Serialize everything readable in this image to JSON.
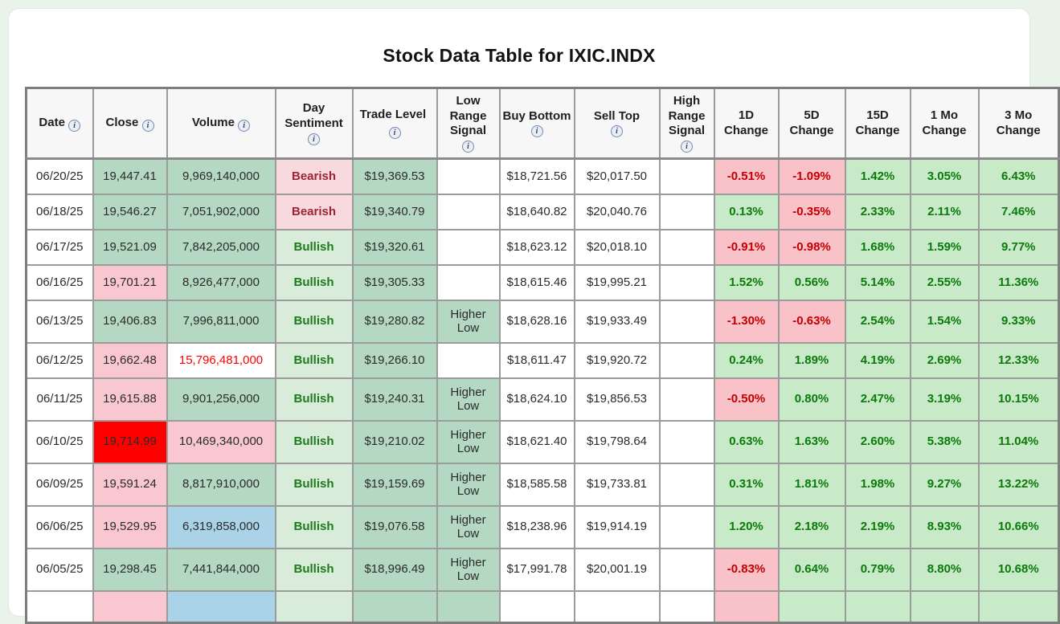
{
  "page": {
    "title": "Stock Data Table for IXIC.INDX"
  },
  "colors": {
    "page_bg": "#e9f3ea",
    "green_cell": "#b4d8c1",
    "light_green_cell": "#d9ecd9",
    "pink_cell": "#f9c7d0",
    "light_pink_cell": "#f8dade",
    "red_cell": "#fe0000",
    "blue_cell": "#abd3e8",
    "pct_green_cell": "#c9eac9",
    "pct_pink_cell": "#f9c2c9",
    "bullish_text": "#1d7a1d",
    "bearish_text": "#9c2434",
    "pos_text": "#0b7a0b",
    "neg_text": "#c40000",
    "red_text": "#ff0000"
  },
  "table": {
    "columns": [
      {
        "label": "Date",
        "info": "inline",
        "w": 83
      },
      {
        "label": "Close",
        "info": "inline",
        "w": 92
      },
      {
        "label": "Volume",
        "info": "inline",
        "w": 135
      },
      {
        "label": "Day Sentiment",
        "info": "below",
        "w": 96
      },
      {
        "label": "Trade Level",
        "info": "inline",
        "w": 105
      },
      {
        "label": "Low Range Signal",
        "info": "below",
        "w": 78
      },
      {
        "label": "Buy Bottom",
        "info": "below",
        "w": 93
      },
      {
        "label": "Sell Top",
        "info": "below",
        "w": 106
      },
      {
        "label": "High Range Signal",
        "info": "below",
        "w": 68
      },
      {
        "label": "1D Change",
        "info": "none",
        "w": 80
      },
      {
        "label": "5D Change",
        "info": "none",
        "w": 83
      },
      {
        "label": "15D Change",
        "info": "none",
        "w": 81
      },
      {
        "label": "1 Mo Change",
        "info": "none",
        "w": 85
      },
      {
        "label": "3 Mo Change",
        "info": "none",
        "w": 100
      }
    ],
    "rows": [
      {
        "date": "06/20/25",
        "close": "19,447.41",
        "close_bg": "green",
        "volume": "9,969,140,000",
        "volume_bg": "green",
        "volume_fg": "",
        "sentiment": "Bearish",
        "trade": "$19,369.53",
        "low_signal": "",
        "buy": "$18,721.56",
        "sell": "$20,017.50",
        "high_signal": "",
        "changes": [
          "-0.51%",
          "-1.09%",
          "1.42%",
          "3.05%",
          "6.43%"
        ]
      },
      {
        "date": "06/18/25",
        "close": "19,546.27",
        "close_bg": "green",
        "volume": "7,051,902,000",
        "volume_bg": "green",
        "volume_fg": "",
        "sentiment": "Bearish",
        "trade": "$19,340.79",
        "low_signal": "",
        "buy": "$18,640.82",
        "sell": "$20,040.76",
        "high_signal": "",
        "changes": [
          "0.13%",
          "-0.35%",
          "2.33%",
          "2.11%",
          "7.46%"
        ]
      },
      {
        "date": "06/17/25",
        "close": "19,521.09",
        "close_bg": "green",
        "volume": "7,842,205,000",
        "volume_bg": "green",
        "volume_fg": "",
        "sentiment": "Bullish",
        "trade": "$19,320.61",
        "low_signal": "",
        "buy": "$18,623.12",
        "sell": "$20,018.10",
        "high_signal": "",
        "changes": [
          "-0.91%",
          "-0.98%",
          "1.68%",
          "1.59%",
          "9.77%"
        ]
      },
      {
        "date": "06/16/25",
        "close": "19,701.21",
        "close_bg": "pink",
        "volume": "8,926,477,000",
        "volume_bg": "green",
        "volume_fg": "",
        "sentiment": "Bullish",
        "trade": "$19,305.33",
        "low_signal": "",
        "buy": "$18,615.46",
        "sell": "$19,995.21",
        "high_signal": "",
        "changes": [
          "1.52%",
          "0.56%",
          "5.14%",
          "2.55%",
          "11.36%"
        ]
      },
      {
        "date": "06/13/25",
        "close": "19,406.83",
        "close_bg": "green",
        "volume": "7,996,811,000",
        "volume_bg": "green",
        "volume_fg": "",
        "sentiment": "Bullish",
        "trade": "$19,280.82",
        "low_signal": "Higher Low",
        "buy": "$18,628.16",
        "sell": "$19,933.49",
        "high_signal": "",
        "changes": [
          "-1.30%",
          "-0.63%",
          "2.54%",
          "1.54%",
          "9.33%"
        ]
      },
      {
        "date": "06/12/25",
        "close": "19,662.48",
        "close_bg": "pink",
        "volume": "15,796,481,000",
        "volume_bg": "white",
        "volume_fg": "red",
        "sentiment": "Bullish",
        "trade": "$19,266.10",
        "low_signal": "",
        "buy": "$18,611.47",
        "sell": "$19,920.72",
        "high_signal": "",
        "changes": [
          "0.24%",
          "1.89%",
          "4.19%",
          "2.69%",
          "12.33%"
        ]
      },
      {
        "date": "06/11/25",
        "close": "19,615.88",
        "close_bg": "pink",
        "volume": "9,901,256,000",
        "volume_bg": "green",
        "volume_fg": "",
        "sentiment": "Bullish",
        "trade": "$19,240.31",
        "low_signal": "Higher Low",
        "buy": "$18,624.10",
        "sell": "$19,856.53",
        "high_signal": "",
        "changes": [
          "-0.50%",
          "0.80%",
          "2.47%",
          "3.19%",
          "10.15%"
        ]
      },
      {
        "date": "06/10/25",
        "close": "19,714.99",
        "close_bg": "red",
        "volume": "10,469,340,000",
        "volume_bg": "pink",
        "volume_fg": "",
        "sentiment": "Bullish",
        "trade": "$19,210.02",
        "low_signal": "Higher Low",
        "buy": "$18,621.40",
        "sell": "$19,798.64",
        "high_signal": "",
        "changes": [
          "0.63%",
          "1.63%",
          "2.60%",
          "5.38%",
          "11.04%"
        ]
      },
      {
        "date": "06/09/25",
        "close": "19,591.24",
        "close_bg": "pink",
        "volume": "8,817,910,000",
        "volume_bg": "green",
        "volume_fg": "",
        "sentiment": "Bullish",
        "trade": "$19,159.69",
        "low_signal": "Higher Low",
        "buy": "$18,585.58",
        "sell": "$19,733.81",
        "high_signal": "",
        "changes": [
          "0.31%",
          "1.81%",
          "1.98%",
          "9.27%",
          "13.22%"
        ]
      },
      {
        "date": "06/06/25",
        "close": "19,529.95",
        "close_bg": "pink",
        "volume": "6,319,858,000",
        "volume_bg": "blue",
        "volume_fg": "",
        "sentiment": "Bullish",
        "trade": "$19,076.58",
        "low_signal": "Higher Low",
        "buy": "$18,238.96",
        "sell": "$19,914.19",
        "high_signal": "",
        "changes": [
          "1.20%",
          "2.18%",
          "2.19%",
          "8.93%",
          "10.66%"
        ]
      },
      {
        "date": "06/05/25",
        "close": "19,298.45",
        "close_bg": "green",
        "volume": "7,441,844,000",
        "volume_bg": "green",
        "volume_fg": "",
        "sentiment": "Bullish",
        "trade": "$18,996.49",
        "low_signal": "Higher Low",
        "buy": "$17,991.78",
        "sell": "$20,001.19",
        "high_signal": "",
        "changes": [
          "-0.83%",
          "0.64%",
          "0.79%",
          "8.80%",
          "10.68%"
        ]
      }
    ],
    "partial_row_bgs": [
      "white",
      "pink",
      "blue",
      "lightgreen",
      "green",
      "green",
      "white",
      "white",
      "white",
      "pctpink",
      "pctgreen",
      "pctgreen",
      "pctgreen",
      "pctgreen"
    ]
  }
}
